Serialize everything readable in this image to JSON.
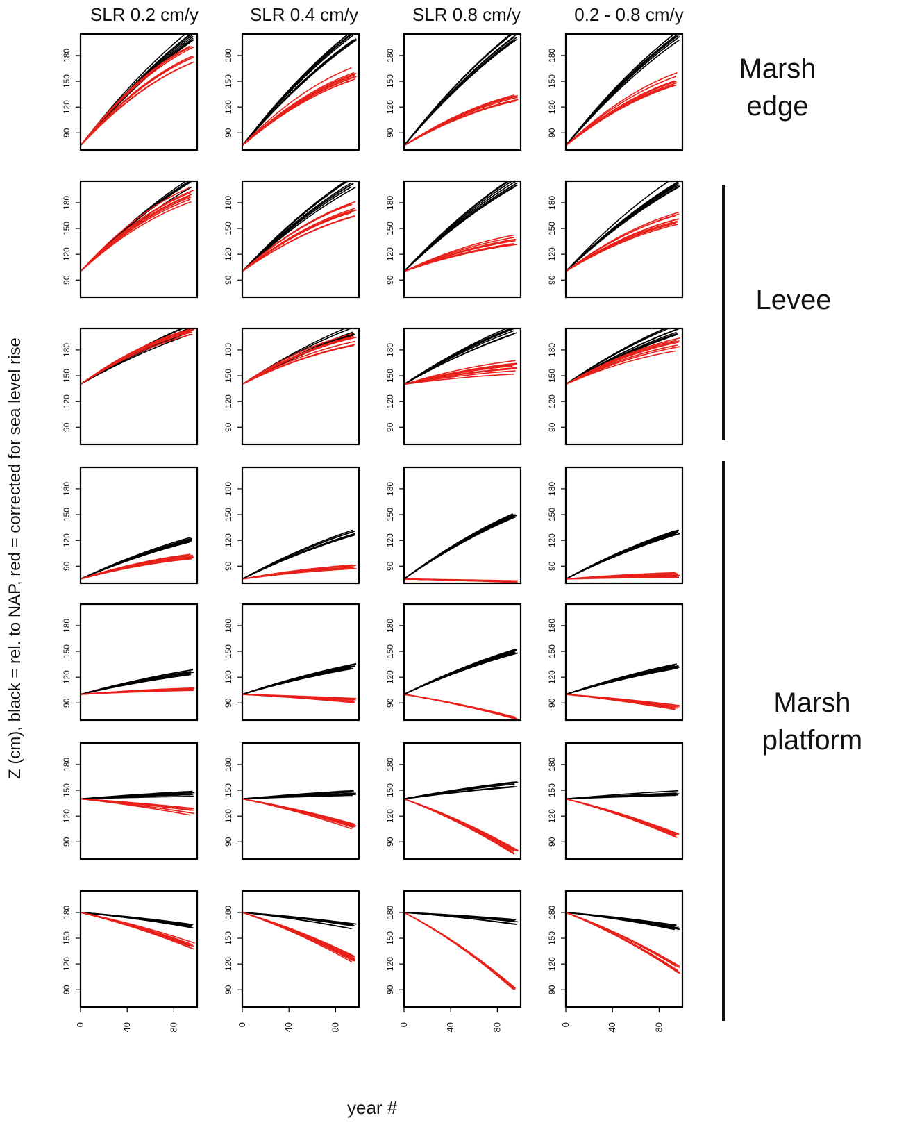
{
  "columns": [
    "SLR 0.2 cm/y",
    "SLR 0.4 cm/y",
    "SLR 0.8 cm/y",
    "0.2 - 0.8 cm/y"
  ],
  "ylabel": "Z (cm), black = rel. to NAP, red = corrected for sea level rise",
  "xlabel": "year #",
  "groups": {
    "marsh_edge": {
      "line1": "Marsh",
      "line2": "edge"
    },
    "levee": {
      "line1": "Levee"
    },
    "marsh_platform": {
      "line1": "Marsh",
      "line2": "platform"
    }
  },
  "colors": {
    "black": "#000000",
    "red": "#e8201a",
    "frame": "#000000"
  },
  "chart_data": {
    "type": "line",
    "layout": "small-multiples grid, 7 rows x 4 columns",
    "x_ticks": [
      0,
      40,
      80
    ],
    "y_ticks": [
      90,
      120,
      150,
      180
    ],
    "xlim": [
      0,
      100
    ],
    "ylim": [
      70,
      205
    ],
    "series_legend": {
      "black": "rel. to NAP",
      "red": "corrected for sea level rise"
    },
    "rows": [
      {
        "group": "marsh_edge",
        "start": 75,
        "panels": [
          {
            "black_end": 205,
            "red_end": 180,
            "red_spread": 22
          },
          {
            "black_end": 205,
            "red_end": 158,
            "red_spread": 16
          },
          {
            "black_end": 205,
            "red_end": 130,
            "red_spread": 8
          },
          {
            "black_end": 205,
            "red_end": 152,
            "red_spread": 16
          }
        ]
      },
      {
        "group": "levee",
        "start": 100,
        "panels": [
          {
            "black_end": 205,
            "red_end": 190,
            "red_spread": 18
          },
          {
            "black_end": 205,
            "red_end": 173,
            "red_spread": 18
          },
          {
            "black_end": 205,
            "red_end": 137,
            "red_spread": 12
          },
          {
            "black_end": 205,
            "red_end": 163,
            "red_spread": 18
          }
        ]
      },
      {
        "group": "levee",
        "start": 140,
        "panels": [
          {
            "black_end": 205,
            "red_end": 200,
            "red_spread": 14
          },
          {
            "black_end": 205,
            "red_end": 192,
            "red_spread": 14
          },
          {
            "black_end": 205,
            "red_end": 158,
            "red_spread": 22
          },
          {
            "black_end": 205,
            "red_end": 185,
            "red_spread": 18
          }
        ]
      },
      {
        "group": "marsh_platform",
        "start": 75,
        "panels": [
          {
            "black_end": 121,
            "red_end": 101,
            "red_spread": 6
          },
          {
            "black_end": 129,
            "red_end": 89,
            "red_spread": 6
          },
          {
            "black_end": 150,
            "red_end": 72,
            "red_spread": 2
          },
          {
            "black_end": 130,
            "red_end": 80,
            "red_spread": 6
          }
        ]
      },
      {
        "group": "marsh_platform",
        "start": 100,
        "panels": [
          {
            "black_end": 126,
            "red_end": 107,
            "red_spread": 5
          },
          {
            "black_end": 133,
            "red_end": 93,
            "red_spread": 6
          },
          {
            "black_end": 151,
            "red_end": 73,
            "red_spread": 3
          },
          {
            "black_end": 133,
            "red_end": 85,
            "red_spread": 6
          }
        ]
      },
      {
        "group": "marsh_platform",
        "start": 140,
        "panels": [
          {
            "black_end": 146,
            "red_end": 125,
            "red_spread": 8
          },
          {
            "black_end": 147,
            "red_end": 108,
            "red_spread": 6
          },
          {
            "black_end": 157,
            "red_end": 78,
            "red_spread": 5
          },
          {
            "black_end": 147,
            "red_end": 98,
            "red_spread": 6
          }
        ]
      },
      {
        "group": "marsh_platform",
        "start": 180,
        "panels": [
          {
            "black_end": 165,
            "red_end": 142,
            "red_spread": 10
          },
          {
            "black_end": 164,
            "red_end": 125,
            "red_spread": 10
          },
          {
            "black_end": 169,
            "red_end": 91,
            "red_spread": 5
          },
          {
            "black_end": 163,
            "red_end": 113,
            "red_spread": 10
          }
        ]
      }
    ]
  }
}
